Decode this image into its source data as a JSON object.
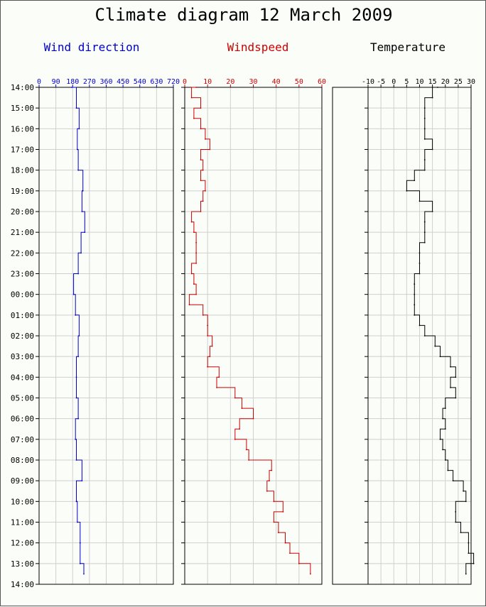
{
  "title": "Climate diagram 12 March 2009",
  "time_labels": [
    "14:00",
    "15:00",
    "16:00",
    "17:00",
    "18:00",
    "19:00",
    "20:00",
    "21:00",
    "22:00",
    "23:00",
    "00:00",
    "01:00",
    "02:00",
    "03:00",
    "04:00",
    "05:00",
    "06:00",
    "07:00",
    "08:00",
    "09:00",
    "10:00",
    "11:00",
    "12:00",
    "13:00",
    "14:00"
  ],
  "colors": {
    "wind_direction": "#0000cc",
    "windspeed": "#cc0000",
    "temperature": "#000000",
    "grid": "#d0d0d0",
    "frame": "#000000"
  },
  "chart_data": [
    {
      "type": "line",
      "title": "Wind direction",
      "x_axis_ticks": [
        "0",
        "90",
        "180",
        "270",
        "360",
        "450",
        "540",
        "630",
        "720"
      ],
      "y_axis": "time",
      "y_range": [
        "14:00",
        "14:00 (+24h)"
      ],
      "grid": true,
      "series": [
        {
          "name": "Wind direction",
          "x": [
            "14:00",
            "15:00",
            "16:00",
            "17:00",
            "18:00",
            "19:00",
            "20:00",
            "21:00",
            "22:00",
            "23:00",
            "00:00",
            "01:00",
            "02:00",
            "03:00",
            "04:00",
            "05:00",
            "06:00",
            "07:00",
            "08:00",
            "09:00",
            "10:00",
            "11:00",
            "12:00",
            "13:00",
            "13:30"
          ],
          "values": [
            175,
            200,
            215,
            205,
            210,
            235,
            230,
            245,
            225,
            210,
            185,
            195,
            215,
            210,
            200,
            200,
            210,
            195,
            200,
            230,
            200,
            205,
            220,
            220,
            240
          ]
        }
      ]
    },
    {
      "type": "line",
      "title": "Windspeed",
      "x_axis_ticks": [
        "0",
        "10",
        "20",
        "30",
        "40",
        "50",
        "60"
      ],
      "y_axis": "time",
      "y_range": [
        "14:00",
        "14:00 (+24h)"
      ],
      "grid": true,
      "series": [
        {
          "name": "Windspeed",
          "x": [
            "14:00",
            "14:30",
            "15:00",
            "15:30",
            "16:00",
            "16:30",
            "17:00",
            "17:30",
            "18:00",
            "18:30",
            "19:00",
            "19:30",
            "20:00",
            "20:30",
            "21:00",
            "21:30",
            "22:00",
            "22:30",
            "23:00",
            "23:30",
            "00:00",
            "00:30",
            "01:00",
            "01:30",
            "02:00",
            "02:30",
            "03:00",
            "03:30",
            "04:00",
            "04:30",
            "05:00",
            "05:30",
            "06:00",
            "06:30",
            "07:00",
            "07:30",
            "08:00",
            "08:30",
            "09:00",
            "09:30",
            "10:00",
            "10:30",
            "11:00",
            "11:30",
            "12:00",
            "12:30",
            "13:00",
            "13:30"
          ],
          "values": [
            5,
            3,
            7,
            4,
            7,
            9,
            11,
            7,
            8,
            7,
            9,
            8,
            7,
            3,
            4,
            5,
            5,
            5,
            3,
            4,
            5,
            2,
            8,
            10,
            10,
            12,
            11,
            10,
            15,
            14,
            22,
            25,
            30,
            24,
            22,
            27,
            28,
            38,
            37,
            36,
            39,
            43,
            39,
            41,
            44,
            46,
            50,
            55
          ]
        }
      ]
    },
    {
      "type": "line",
      "title": "Temperature",
      "x_axis_ticks": [
        "-10",
        "-5",
        "0",
        "5",
        "10",
        "15",
        "20",
        "25",
        "30"
      ],
      "y_axis": "time",
      "y_range": [
        "14:00",
        "14:00 (+24h)"
      ],
      "grid": true,
      "series": [
        {
          "name": "Temperature",
          "x": [
            "14:00",
            "14:30",
            "15:00",
            "15:30",
            "16:00",
            "16:30",
            "17:00",
            "17:30",
            "18:00",
            "18:30",
            "19:00",
            "19:30",
            "20:00",
            "20:30",
            "21:00",
            "21:30",
            "22:00",
            "22:30",
            "23:00",
            "23:30",
            "00:00",
            "00:30",
            "01:00",
            "01:30",
            "02:00",
            "02:30",
            "03:00",
            "03:30",
            "04:00",
            "04:30",
            "05:00",
            "05:30",
            "06:00",
            "06:30",
            "07:00",
            "07:30",
            "08:00",
            "08:30",
            "09:00",
            "09:30",
            "10:00",
            "10:30",
            "11:00",
            "11:30",
            "12:00",
            "12:30",
            "13:00",
            "13:30"
          ],
          "values": [
            17,
            15,
            12,
            12,
            12,
            12,
            15,
            12,
            12,
            8,
            5,
            10,
            15,
            12,
            12,
            12,
            10,
            10,
            10,
            8,
            8,
            8,
            8,
            10,
            12,
            16,
            18,
            22,
            24,
            22,
            24,
            20,
            19,
            20,
            18,
            19,
            20,
            21,
            23,
            27,
            28,
            24,
            24,
            26,
            29,
            29,
            31,
            28
          ]
        }
      ]
    }
  ]
}
